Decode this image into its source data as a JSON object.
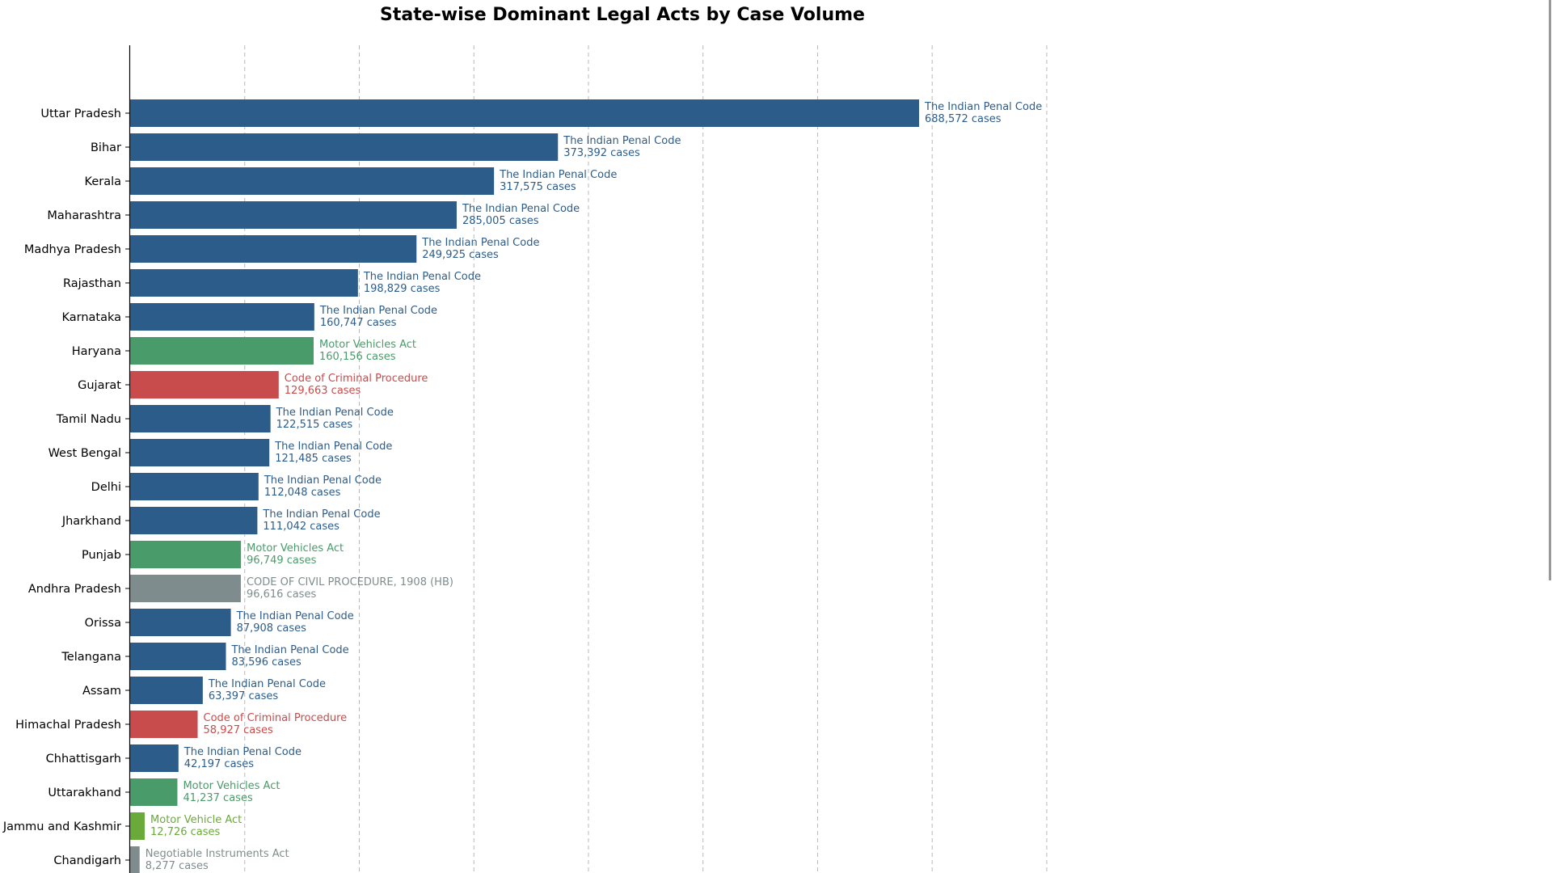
{
  "chart_data": {
    "type": "bar",
    "orientation": "horizontal",
    "title": "State-wise Dominant Legal Acts by Case Volume",
    "xlabel": "",
    "ylabel": "",
    "xlim": [
      0,
      800000
    ],
    "grid": "vertical-dashed",
    "value_suffix": " cases",
    "colors": {
      "The Indian Penal Code": "#2c5d8a",
      "Motor Vehicles Act": "#4a9b6a",
      "Code of Criminal Procedure": "#c94c4c",
      "CODE OF CIVIL PROCEDURE, 1908 (HB)": "#7f8c8d",
      "Motor Vehicle Act": "#6aaa3a",
      "Negotiable Instruments Act": "#7f8c8d"
    },
    "bars": [
      {
        "category": "Uttar Pradesh",
        "act": "The Indian Penal Code",
        "value": 688572,
        "value_label": "688,572"
      },
      {
        "category": "Bihar",
        "act": "The Indian Penal Code",
        "value": 373392,
        "value_label": "373,392"
      },
      {
        "category": "Kerala",
        "act": "The Indian Penal Code",
        "value": 317575,
        "value_label": "317,575"
      },
      {
        "category": "Maharashtra",
        "act": "The Indian Penal Code",
        "value": 285005,
        "value_label": "285,005"
      },
      {
        "category": "Madhya Pradesh",
        "act": "The Indian Penal Code",
        "value": 249925,
        "value_label": "249,925"
      },
      {
        "category": "Rajasthan",
        "act": "The Indian Penal Code",
        "value": 198829,
        "value_label": "198,829"
      },
      {
        "category": "Karnataka",
        "act": "The Indian Penal Code",
        "value": 160747,
        "value_label": "160,747"
      },
      {
        "category": "Haryana",
        "act": "Motor Vehicles Act",
        "value": 160156,
        "value_label": "160,156"
      },
      {
        "category": "Gujarat",
        "act": "Code of Criminal Procedure",
        "value": 129663,
        "value_label": "129,663"
      },
      {
        "category": "Tamil Nadu",
        "act": "The Indian Penal Code",
        "value": 122515,
        "value_label": "122,515"
      },
      {
        "category": "West Bengal",
        "act": "The Indian Penal Code",
        "value": 121485,
        "value_label": "121,485"
      },
      {
        "category": "Delhi",
        "act": "The Indian Penal Code",
        "value": 112048,
        "value_label": "112,048"
      },
      {
        "category": "Jharkhand",
        "act": "The Indian Penal Code",
        "value": 111042,
        "value_label": "111,042"
      },
      {
        "category": "Punjab",
        "act": "Motor Vehicles Act",
        "value": 96749,
        "value_label": "96,749"
      },
      {
        "category": "Andhra Pradesh",
        "act": "CODE OF CIVIL PROCEDURE, 1908 (HB)",
        "value": 96616,
        "value_label": "96,616"
      },
      {
        "category": "Orissa",
        "act": "The Indian Penal Code",
        "value": 87908,
        "value_label": "87,908"
      },
      {
        "category": "Telangana",
        "act": "The Indian Penal Code",
        "value": 83596,
        "value_label": "83,596"
      },
      {
        "category": "Assam",
        "act": "The Indian Penal Code",
        "value": 63397,
        "value_label": "63,397"
      },
      {
        "category": "Himachal Pradesh",
        "act": "Code of Criminal Procedure",
        "value": 58927,
        "value_label": "58,927"
      },
      {
        "category": "Chhattisgarh",
        "act": "The Indian Penal Code",
        "value": 42197,
        "value_label": "42,197"
      },
      {
        "category": "Uttarakhand",
        "act": "Motor Vehicles Act",
        "value": 41237,
        "value_label": "41,237"
      },
      {
        "category": "Jammu and Kashmir",
        "act": "Motor Vehicle Act",
        "value": 12726,
        "value_label": "12,726"
      },
      {
        "category": "Chandigarh",
        "act": "Negotiable Instruments Act",
        "value": 8277,
        "value_label": "8,277"
      }
    ]
  }
}
